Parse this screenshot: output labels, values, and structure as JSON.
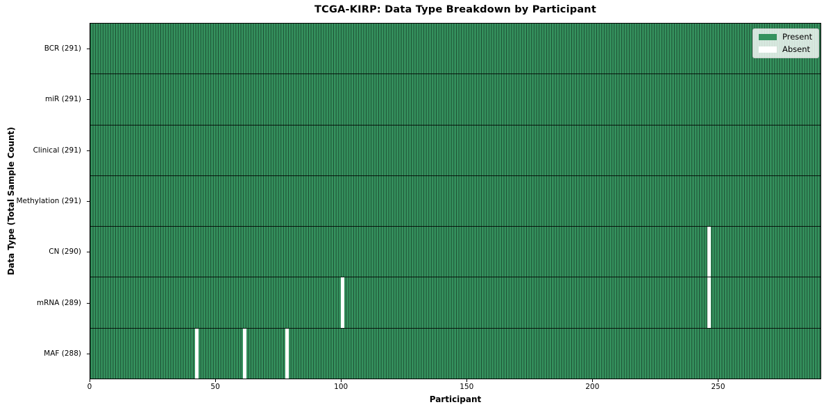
{
  "title": "TCGA-KIRP: Data Type Breakdown by Participant",
  "colors": {
    "present": "#35925e",
    "absent": "#ffffff",
    "cell_edge": "rgba(0,0,0,0.5)",
    "row_separator": "rgba(0,0,0,0.85)",
    "plot_border": "#000000",
    "legend_background": "rgba(255,255,255,0.8)",
    "legend_border": "#cccccc",
    "text": "#000000"
  },
  "chart_data": {
    "type": "heatmap",
    "title": "TCGA-KIRP: Data Type Breakdown by Participant",
    "xlabel": "Participant",
    "ylabel": "Data Type (Total Sample Count)",
    "n_participants": 291,
    "x_range": [
      0,
      291
    ],
    "x_ticks": [
      0,
      50,
      100,
      150,
      200,
      250
    ],
    "grid": false,
    "legend_position": "upper right",
    "rows": [
      {
        "data_type": "BCR",
        "label": "BCR (291)",
        "total_samples": 291,
        "absent_participants": []
      },
      {
        "data_type": "miR",
        "label": "miR (291)",
        "total_samples": 291,
        "absent_participants": []
      },
      {
        "data_type": "Clinical",
        "label": "Clinical (291)",
        "total_samples": 291,
        "absent_participants": []
      },
      {
        "data_type": "Methylation",
        "label": "Methylation (291)",
        "total_samples": 291,
        "absent_participants": []
      },
      {
        "data_type": "CN",
        "label": "CN (290)",
        "total_samples": 290,
        "absent_participants": [
          246
        ]
      },
      {
        "data_type": "mRNA",
        "label": "mRNA (289)",
        "total_samples": 289,
        "absent_participants": [
          100,
          246
        ]
      },
      {
        "data_type": "MAF",
        "label": "MAF (288)",
        "total_samples": 288,
        "absent_participants": [
          42,
          61,
          78
        ]
      }
    ],
    "legend": [
      {
        "label": "Present",
        "color": "#35925e"
      },
      {
        "label": "Absent",
        "color": "#ffffff"
      }
    ]
  }
}
